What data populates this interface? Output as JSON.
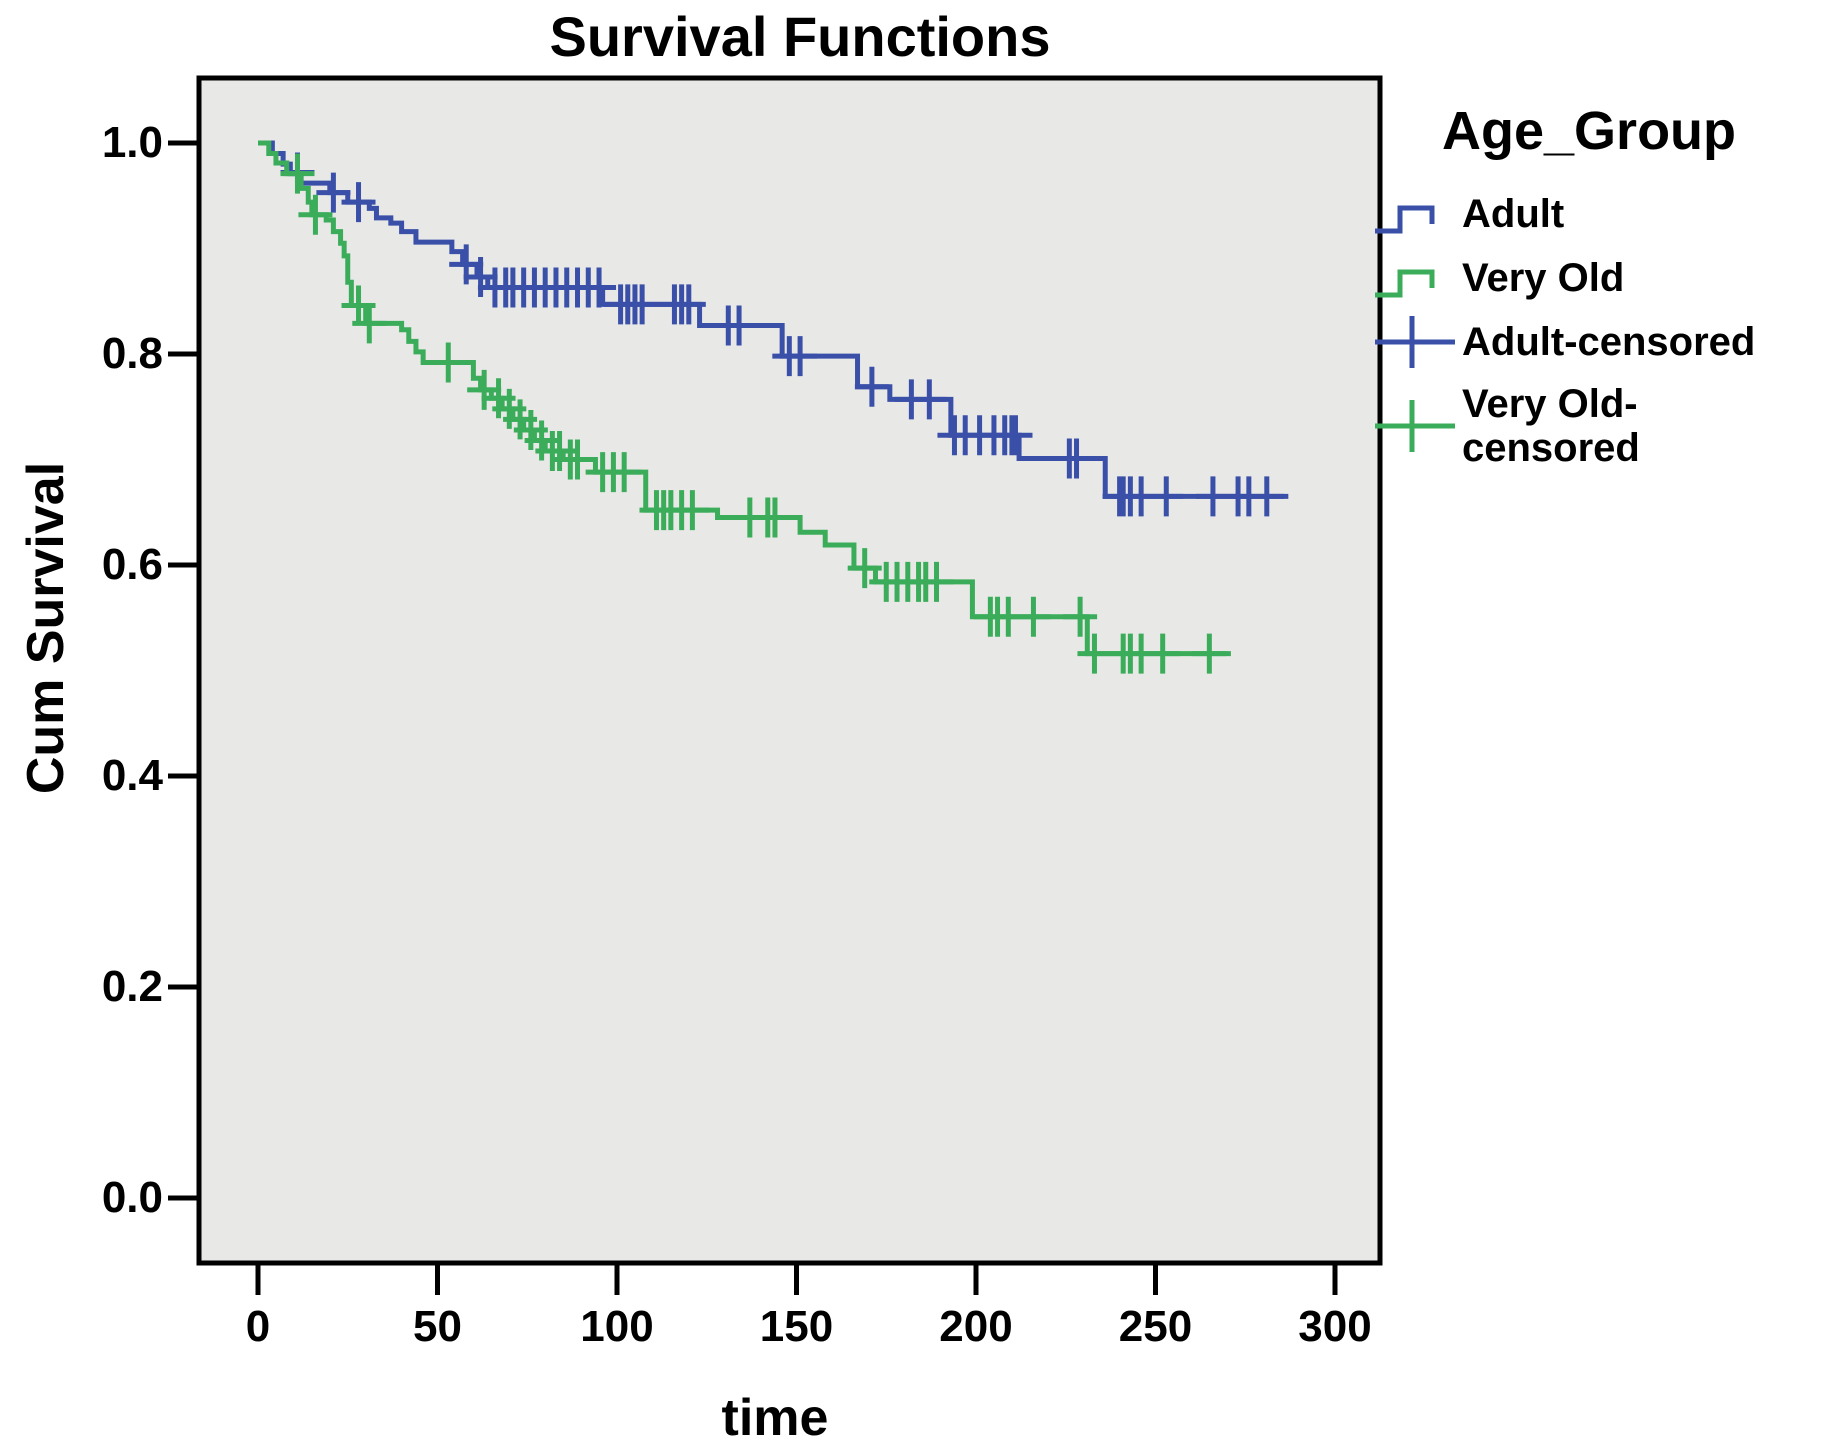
{
  "chart_data": {
    "type": "line",
    "subtype": "kaplan-meier-step-survival",
    "title": "Survival Functions",
    "xlabel": "time",
    "ylabel": "Cum Survival",
    "plot_background": "#E8E8E7",
    "frame_color": "#000000",
    "grid": "off",
    "x_axis": {
      "range_labeled": [
        0,
        300
      ],
      "ticks": [
        {
          "value": 0,
          "label": "0"
        },
        {
          "value": 50,
          "label": "50"
        },
        {
          "value": 100,
          "label": "100"
        },
        {
          "value": 150,
          "label": "150"
        },
        {
          "value": 200,
          "label": "200"
        },
        {
          "value": 250,
          "label": "250"
        },
        {
          "value": 300,
          "label": "300"
        }
      ]
    },
    "y_axis": {
      "range_labeled": [
        0.0,
        1.0
      ],
      "ticks": [
        {
          "value": 0.0,
          "label": "0.0"
        },
        {
          "value": 0.2,
          "label": "0.2"
        },
        {
          "value": 0.4,
          "label": "0.4"
        },
        {
          "value": 0.6,
          "label": "0.6"
        },
        {
          "value": 0.8,
          "label": "0.8"
        },
        {
          "value": 1.0,
          "label": "1.0"
        }
      ]
    },
    "legend": {
      "title": "Age_Group",
      "position": "right",
      "entries": [
        {
          "label": "Adult",
          "symbol": "step-line",
          "color": "#3A50A8"
        },
        {
          "label": "Very Old",
          "symbol": "step-line",
          "color": "#3BAD5A"
        },
        {
          "label": "Adult-censored",
          "symbol": "plus",
          "color": "#3A50A8"
        },
        {
          "label": "Very Old-censored",
          "symbol": "plus",
          "color": "#3BAD5A"
        }
      ]
    },
    "series": [
      {
        "name": "Adult",
        "color": "#3A50A8",
        "end_time": 287,
        "steps": [
          [
            0,
            1.0
          ],
          [
            4,
            0.99
          ],
          [
            7,
            0.98
          ],
          [
            9,
            0.971
          ],
          [
            12,
            0.962
          ],
          [
            20,
            0.953
          ],
          [
            25,
            0.944
          ],
          [
            31,
            0.938
          ],
          [
            33,
            0.929
          ],
          [
            37,
            0.924
          ],
          [
            40,
            0.916
          ],
          [
            44,
            0.906
          ],
          [
            54,
            0.897
          ],
          [
            57,
            0.885
          ],
          [
            61,
            0.873
          ],
          [
            64,
            0.863
          ],
          [
            96,
            0.847
          ],
          [
            123,
            0.827
          ],
          [
            146,
            0.798
          ],
          [
            167,
            0.769
          ],
          [
            176,
            0.757
          ],
          [
            193,
            0.723
          ],
          [
            212,
            0.701
          ],
          [
            236,
            0.665
          ]
        ],
        "censored": [
          [
            11,
            0.972
          ],
          [
            21,
            0.953
          ],
          [
            28,
            0.944
          ],
          [
            58,
            0.885
          ],
          [
            62,
            0.873
          ],
          [
            66,
            0.863
          ],
          [
            69,
            0.863
          ],
          [
            71,
            0.863
          ],
          [
            74,
            0.863
          ],
          [
            77,
            0.863
          ],
          [
            80,
            0.863
          ],
          [
            83,
            0.863
          ],
          [
            86,
            0.863
          ],
          [
            89,
            0.863
          ],
          [
            92,
            0.863
          ],
          [
            95,
            0.863
          ],
          [
            101,
            0.847
          ],
          [
            103,
            0.847
          ],
          [
            105,
            0.847
          ],
          [
            107,
            0.847
          ],
          [
            116,
            0.847
          ],
          [
            118,
            0.847
          ],
          [
            120,
            0.847
          ],
          [
            131,
            0.827
          ],
          [
            134,
            0.827
          ],
          [
            148,
            0.798
          ],
          [
            151,
            0.798
          ],
          [
            171,
            0.769
          ],
          [
            182,
            0.757
          ],
          [
            187,
            0.757
          ],
          [
            194,
            0.723
          ],
          [
            197,
            0.723
          ],
          [
            201,
            0.723
          ],
          [
            205,
            0.723
          ],
          [
            208,
            0.723
          ],
          [
            210,
            0.723
          ],
          [
            211,
            0.723
          ],
          [
            226,
            0.701
          ],
          [
            228,
            0.701
          ],
          [
            240,
            0.665
          ],
          [
            241,
            0.665
          ],
          [
            243,
            0.665
          ],
          [
            246,
            0.665
          ],
          [
            253,
            0.665
          ],
          [
            266,
            0.665
          ],
          [
            273,
            0.665
          ],
          [
            276,
            0.665
          ],
          [
            281,
            0.665
          ]
        ]
      },
      {
        "name": "Very Old",
        "color": "#3BAD5A",
        "end_time": 271,
        "steps": [
          [
            0,
            1.0
          ],
          [
            3,
            0.99
          ],
          [
            5,
            0.981
          ],
          [
            8,
            0.971
          ],
          [
            12,
            0.957
          ],
          [
            14,
            0.944
          ],
          [
            15,
            0.932
          ],
          [
            19,
            0.927
          ],
          [
            21,
            0.916
          ],
          [
            23,
            0.905
          ],
          [
            24,
            0.893
          ],
          [
            25,
            0.868
          ],
          [
            26,
            0.846
          ],
          [
            30,
            0.829
          ],
          [
            40,
            0.823
          ],
          [
            42,
            0.812
          ],
          [
            44,
            0.802
          ],
          [
            46,
            0.792
          ],
          [
            60,
            0.777
          ],
          [
            62,
            0.766
          ],
          [
            65,
            0.758
          ],
          [
            68,
            0.748
          ],
          [
            71,
            0.738
          ],
          [
            74,
            0.728
          ],
          [
            77,
            0.718
          ],
          [
            80,
            0.708
          ],
          [
            85,
            0.7
          ],
          [
            94,
            0.688
          ],
          [
            108,
            0.652
          ],
          [
            128,
            0.645
          ],
          [
            151,
            0.631
          ],
          [
            158,
            0.619
          ],
          [
            166,
            0.597
          ],
          [
            172,
            0.584
          ],
          [
            199,
            0.551
          ],
          [
            231,
            0.516
          ]
        ],
        "censored": [
          [
            11,
            0.971
          ],
          [
            16,
            0.932
          ],
          [
            28,
            0.846
          ],
          [
            31,
            0.829
          ],
          [
            53,
            0.792
          ],
          [
            63,
            0.766
          ],
          [
            67,
            0.758
          ],
          [
            70,
            0.748
          ],
          [
            73,
            0.738
          ],
          [
            76,
            0.728
          ],
          [
            79,
            0.718
          ],
          [
            82,
            0.708
          ],
          [
            84,
            0.708
          ],
          [
            87,
            0.7
          ],
          [
            89,
            0.7
          ],
          [
            96,
            0.688
          ],
          [
            99,
            0.688
          ],
          [
            102,
            0.688
          ],
          [
            111,
            0.652
          ],
          [
            113,
            0.652
          ],
          [
            115,
            0.652
          ],
          [
            118,
            0.652
          ],
          [
            121,
            0.652
          ],
          [
            137,
            0.645
          ],
          [
            142,
            0.645
          ],
          [
            144,
            0.645
          ],
          [
            169,
            0.597
          ],
          [
            175,
            0.584
          ],
          [
            178,
            0.584
          ],
          [
            181,
            0.584
          ],
          [
            184,
            0.584
          ],
          [
            186,
            0.584
          ],
          [
            189,
            0.584
          ],
          [
            204,
            0.551
          ],
          [
            206,
            0.551
          ],
          [
            209,
            0.551
          ],
          [
            216,
            0.551
          ],
          [
            229,
            0.551
          ],
          [
            233,
            0.516
          ],
          [
            241,
            0.516
          ],
          [
            243,
            0.516
          ],
          [
            246,
            0.516
          ],
          [
            252,
            0.516
          ],
          [
            265,
            0.516
          ]
        ]
      }
    ]
  }
}
